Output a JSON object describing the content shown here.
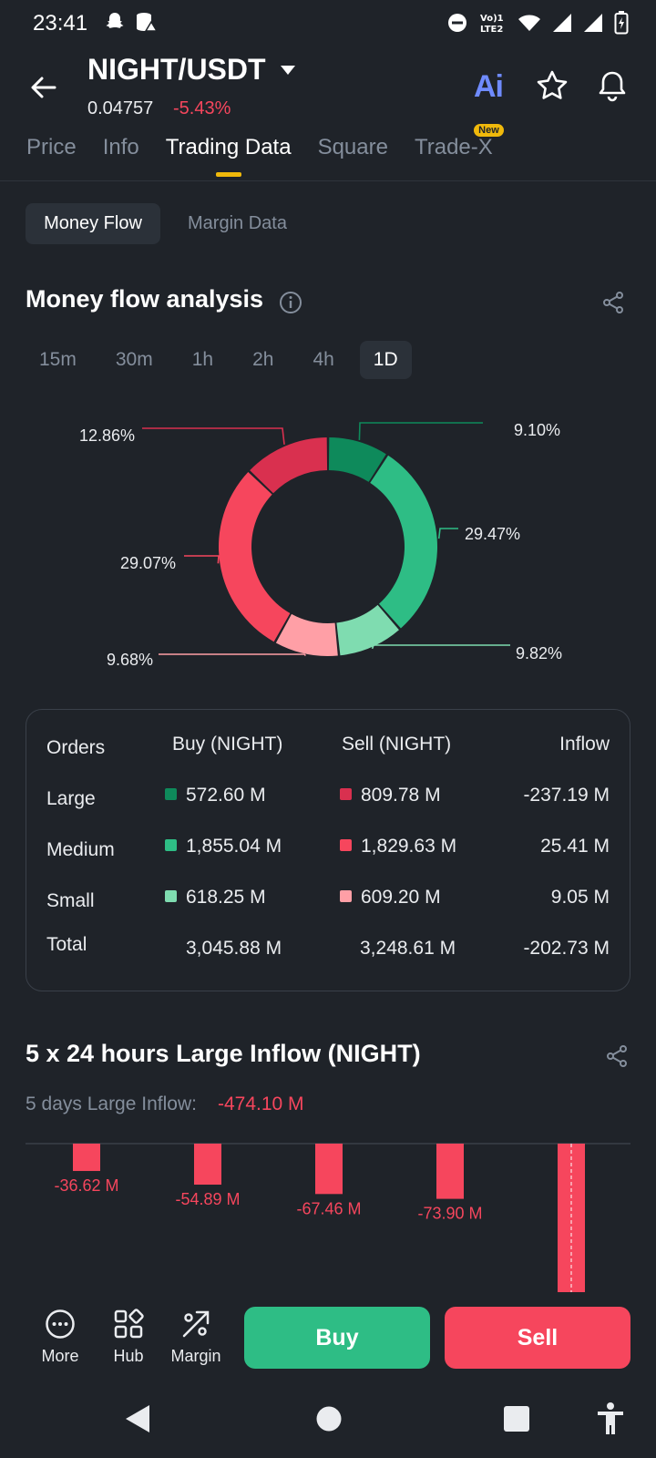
{
  "status_bar": {
    "time": "23:41"
  },
  "header": {
    "pair": "NIGHT/USDT",
    "price": "0.04757",
    "change": "-5.43%",
    "ai_label": "Ai"
  },
  "tabs": [
    {
      "label": "Price"
    },
    {
      "label": "Info"
    },
    {
      "label": "Trading Data"
    },
    {
      "label": "Square"
    },
    {
      "label": "Trade-X",
      "badge": "New"
    }
  ],
  "subtabs": {
    "money_flow": "Money Flow",
    "margin_data": "Margin Data"
  },
  "money_flow": {
    "title": "Money flow analysis",
    "intervals": [
      "15m",
      "30m",
      "1h",
      "2h",
      "4h",
      "1D"
    ],
    "active_interval": "1D"
  },
  "chart_data": [
    {
      "type": "pie",
      "labels": [
        "9.10%",
        "29.47%",
        "9.82%",
        "9.68%",
        "29.07%",
        "12.86%"
      ],
      "values": [
        9.1,
        29.47,
        9.82,
        9.68,
        29.07,
        12.86
      ],
      "colors": [
        "#0e8a5b",
        "#2ebd85",
        "#7fdcb0",
        "#ff9fa6",
        "#f6465d",
        "#d9304f"
      ]
    },
    {
      "type": "bar",
      "values": [
        -36.62,
        -54.89,
        -67.46,
        -73.9,
        -241.23
      ],
      "labels": [
        "-36.62 M",
        "-54.89 M",
        "-67.46 M",
        "-73.90 M",
        ""
      ],
      "color": "#f6465d"
    }
  ],
  "flow_table": {
    "headers": {
      "orders": "Orders",
      "buy": "Buy (NIGHT)",
      "sell": "Sell (NIGHT)",
      "inflow": "Inflow"
    },
    "rows": [
      {
        "label": "Large",
        "buy": "572.60 M",
        "sell": "809.78 M",
        "inflow": "-237.19 M",
        "buy_color": "#0e8a5b",
        "sell_color": "#d9304f"
      },
      {
        "label": "Medium",
        "buy": "1,855.04 M",
        "sell": "1,829.63 M",
        "inflow": "25.41 M",
        "buy_color": "#2ebd85",
        "sell_color": "#f6465d"
      },
      {
        "label": "Small",
        "buy": "618.25 M",
        "sell": "609.20 M",
        "inflow": "9.05 M",
        "buy_color": "#7fdcb0",
        "sell_color": "#ff9fa6"
      }
    ],
    "total": {
      "label": "Total",
      "buy": "3,045.88 M",
      "sell": "3,248.61 M",
      "inflow": "-202.73 M"
    }
  },
  "large_inflow": {
    "title": "5 x 24 hours Large Inflow (NIGHT)",
    "sub_label": "5 days Large Inflow:",
    "sub_value": "-474.10 M"
  },
  "actions": {
    "more": "More",
    "hub": "Hub",
    "margin": "Margin",
    "buy": "Buy",
    "sell": "Sell"
  }
}
